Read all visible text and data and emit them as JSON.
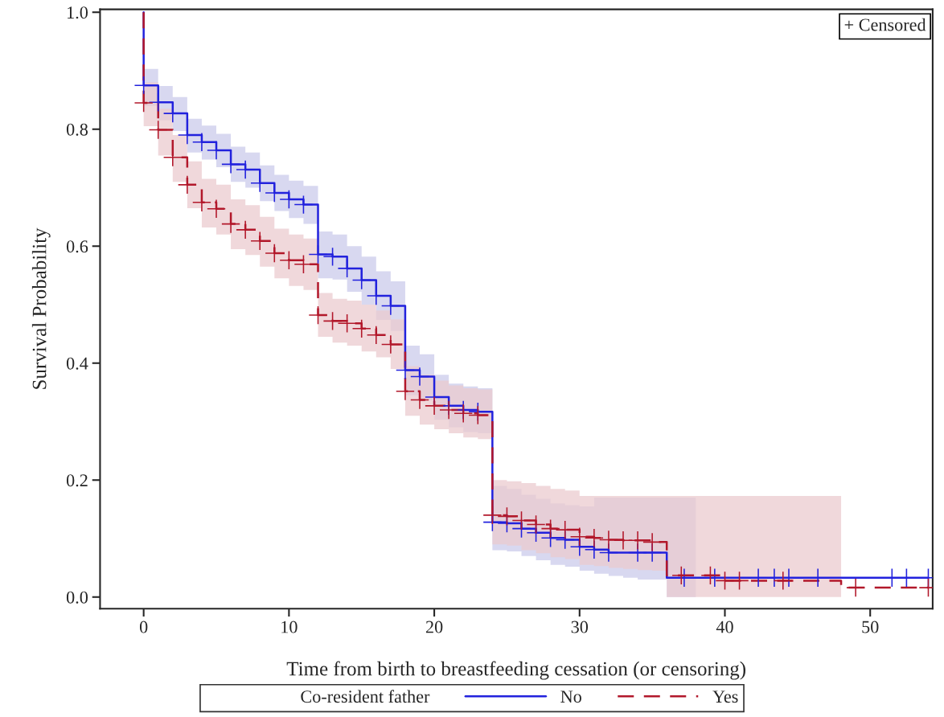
{
  "chart_data": {
    "type": "step",
    "xlabel": "Time from birth to breastfeeding cessation (or censoring)",
    "ylabel": "Survival Probability",
    "legend_title": "Co-resident father",
    "legend": "bottom",
    "grid": false,
    "annotations": [
      "+ Censored"
    ],
    "xlim": [
      -3,
      54.3
    ],
    "xticks": [
      0,
      10,
      20,
      30,
      40,
      50
    ],
    "ylim": [
      -0.02,
      1.005
    ],
    "yticks": [
      {
        "value": 0,
        "label": "0.0"
      },
      {
        "value": 0.2,
        "label": "0.2"
      },
      {
        "value": 0.4,
        "label": "0.4"
      },
      {
        "value": 0.6,
        "label": "0.6"
      },
      {
        "value": 0.8,
        "label": "0.8"
      },
      {
        "value": 1,
        "label": "1.0"
      }
    ],
    "series": [
      {
        "name": "No",
        "type": "step",
        "color": "#2222dd",
        "line_style": "solid",
        "x": [
          0,
          0,
          1,
          2,
          3,
          4,
          5,
          6,
          7,
          8,
          9,
          10,
          11,
          12,
          13,
          14,
          15,
          16,
          17,
          18,
          19,
          20,
          21,
          22,
          23,
          24,
          25,
          26,
          27,
          28,
          29,
          30,
          31,
          32,
          33,
          34,
          35,
          36,
          37,
          38,
          39,
          40,
          41,
          42,
          43,
          44,
          45,
          46,
          47,
          48,
          49,
          50,
          51,
          52,
          53,
          54
        ],
        "values": [
          1.0,
          0.875,
          0.846,
          0.827,
          0.79,
          0.778,
          0.764,
          0.74,
          0.731,
          0.708,
          0.691,
          0.68,
          0.671,
          0.586,
          0.582,
          0.562,
          0.542,
          0.515,
          0.498,
          0.388,
          0.377,
          0.342,
          0.327,
          0.32,
          0.317,
          0.128,
          0.126,
          0.117,
          0.11,
          0.101,
          0.098,
          0.086,
          0.081,
          0.076,
          0.076,
          0.076,
          0.076,
          0.033,
          0.033,
          0.033,
          0.033,
          0.033,
          0.033,
          0.033,
          0.033,
          0.033,
          0.033,
          0.033,
          0.033,
          0.033,
          0.033,
          0.033,
          0.033,
          0.033,
          0.033,
          0.033
        ],
        "upper": [
          0.903,
          0.903,
          0.874,
          0.855,
          0.818,
          0.806,
          0.792,
          0.77,
          0.76,
          0.738,
          0.722,
          0.712,
          0.703,
          0.625,
          0.62,
          0.6,
          0.582,
          0.557,
          0.54,
          0.43,
          0.415,
          0.38,
          0.365,
          0.36,
          0.357,
          0.19,
          0.185,
          0.175,
          0.168,
          0.16,
          0.157,
          0.155,
          0.17,
          0.17,
          0.17,
          0.17,
          0.17,
          0.17,
          0.17,
          0.17,
          null,
          null,
          null,
          null,
          null,
          null,
          null,
          null,
          null,
          null,
          null,
          null,
          null,
          null,
          null,
          null
        ],
        "lower": [
          0.84,
          0.84,
          0.815,
          0.797,
          0.76,
          0.748,
          0.735,
          0.71,
          0.7,
          0.677,
          0.66,
          0.648,
          0.638,
          0.545,
          0.543,
          0.522,
          0.5,
          0.474,
          0.455,
          0.345,
          0.336,
          0.303,
          0.29,
          0.282,
          0.28,
          0.08,
          0.078,
          0.07,
          0.063,
          0.055,
          0.052,
          0.045,
          0.04,
          0.036,
          0.033,
          0.03,
          0.03,
          0.0,
          0.0,
          0.0,
          null,
          null,
          null,
          null,
          null,
          null,
          null,
          null,
          null,
          null,
          null,
          null,
          null,
          null,
          null,
          null
        ]
      },
      {
        "name": "Yes",
        "type": "step",
        "color": "#b2182b",
        "line_style": "dashed",
        "x": [
          0,
          0,
          1,
          2,
          3,
          4,
          5,
          6,
          7,
          8,
          9,
          10,
          11,
          12,
          13,
          14,
          15,
          16,
          17,
          18,
          19,
          20,
          21,
          22,
          23,
          24,
          25,
          26,
          27,
          28,
          29,
          30,
          31,
          32,
          33,
          34,
          35,
          36,
          37,
          38,
          39,
          40,
          41,
          42,
          43,
          44,
          45,
          46,
          47,
          48,
          49,
          50,
          51,
          52,
          53,
          54
        ],
        "values": [
          1.0,
          0.845,
          0.799,
          0.752,
          0.705,
          0.675,
          0.664,
          0.638,
          0.628,
          0.609,
          0.588,
          0.576,
          0.569,
          0.482,
          0.472,
          0.468,
          0.459,
          0.448,
          0.432,
          0.352,
          0.337,
          0.327,
          0.32,
          0.314,
          0.311,
          0.14,
          0.138,
          0.131,
          0.124,
          0.117,
          0.115,
          0.103,
          0.101,
          0.098,
          0.097,
          0.097,
          0.094,
          0.037,
          0.037,
          0.037,
          0.037,
          0.028,
          0.028,
          0.028,
          0.028,
          0.028,
          0.028,
          0.028,
          0.028,
          0.016,
          0.016,
          0.016,
          0.016,
          0.016,
          0.016,
          0.016
        ],
        "upper": [
          0.88,
          0.88,
          0.835,
          0.79,
          0.745,
          0.715,
          0.705,
          0.68,
          0.67,
          0.65,
          0.63,
          0.62,
          0.613,
          0.52,
          0.51,
          0.507,
          0.5,
          0.49,
          0.475,
          0.395,
          0.38,
          0.37,
          0.362,
          0.357,
          0.355,
          0.2,
          0.198,
          0.195,
          0.19,
          0.185,
          0.182,
          0.173,
          0.173,
          0.173,
          0.173,
          0.173,
          0.173,
          0.173,
          0.173,
          0.173,
          0.173,
          0.173,
          0.173,
          0.173,
          0.173,
          0.173,
          0.173,
          0.173,
          0.173,
          0.173,
          null,
          null,
          null,
          null,
          null,
          null
        ],
        "lower": [
          0.805,
          0.805,
          0.755,
          0.71,
          0.665,
          0.632,
          0.62,
          0.595,
          0.585,
          0.565,
          0.545,
          0.532,
          0.525,
          0.445,
          0.435,
          0.43,
          0.42,
          0.41,
          0.39,
          0.31,
          0.295,
          0.287,
          0.28,
          0.273,
          0.27,
          0.09,
          0.088,
          0.08,
          0.075,
          0.068,
          0.065,
          0.055,
          0.053,
          0.05,
          0.048,
          0.046,
          0.045,
          0.0,
          0.0,
          0.0,
          0.0,
          0.0,
          0.0,
          0.0,
          0.0,
          0.0,
          0.0,
          0.0,
          0.0,
          0.0,
          null,
          null,
          null,
          null,
          null,
          null
        ]
      },
      {
        "type": "scatter",
        "marker": "cross",
        "color": "#2222dd",
        "x": [
          0,
          1,
          2,
          3,
          4,
          5,
          6,
          7,
          8,
          9,
          10,
          11,
          12,
          13,
          14,
          15,
          16,
          17,
          18,
          19,
          20,
          21,
          22,
          23,
          24,
          25,
          26,
          27,
          28,
          29,
          30,
          31,
          32,
          34,
          35,
          37.2,
          39.3,
          42.3,
          43.4,
          44.4,
          46.4,
          51.5,
          52.5,
          54
        ],
        "values": [
          0.875,
          0.846,
          0.827,
          0.79,
          0.778,
          0.764,
          0.74,
          0.731,
          0.708,
          0.691,
          0.68,
          0.671,
          0.586,
          0.582,
          0.562,
          0.542,
          0.515,
          0.498,
          0.388,
          0.377,
          0.342,
          0.327,
          0.32,
          0.317,
          0.128,
          0.126,
          0.117,
          0.11,
          0.101,
          0.098,
          0.086,
          0.081,
          0.076,
          0.076,
          0.076,
          0.033,
          0.033,
          0.033,
          0.033,
          0.033,
          0.033,
          0.033,
          0.033,
          0.033
        ]
      },
      {
        "type": "scatter",
        "marker": "cross",
        "color": "#b2182b",
        "x": [
          0,
          1,
          2,
          3,
          4,
          5,
          6,
          7,
          8,
          9,
          10,
          11,
          12,
          13,
          14,
          15,
          16,
          17,
          18,
          19,
          20,
          21,
          22,
          23,
          24,
          25,
          26,
          27,
          28,
          29,
          30,
          31,
          32,
          33,
          34,
          35,
          37,
          39,
          40,
          41,
          44,
          49,
          54
        ],
        "values": [
          0.845,
          0.799,
          0.752,
          0.705,
          0.675,
          0.664,
          0.638,
          0.628,
          0.609,
          0.588,
          0.576,
          0.569,
          0.482,
          0.472,
          0.468,
          0.459,
          0.448,
          0.432,
          0.352,
          0.337,
          0.327,
          0.32,
          0.314,
          0.311,
          0.14,
          0.138,
          0.131,
          0.124,
          0.117,
          0.115,
          0.103,
          0.101,
          0.098,
          0.097,
          0.097,
          0.094,
          0.037,
          0.037,
          0.028,
          0.028,
          0.028,
          0.016,
          0.016
        ]
      }
    ]
  }
}
